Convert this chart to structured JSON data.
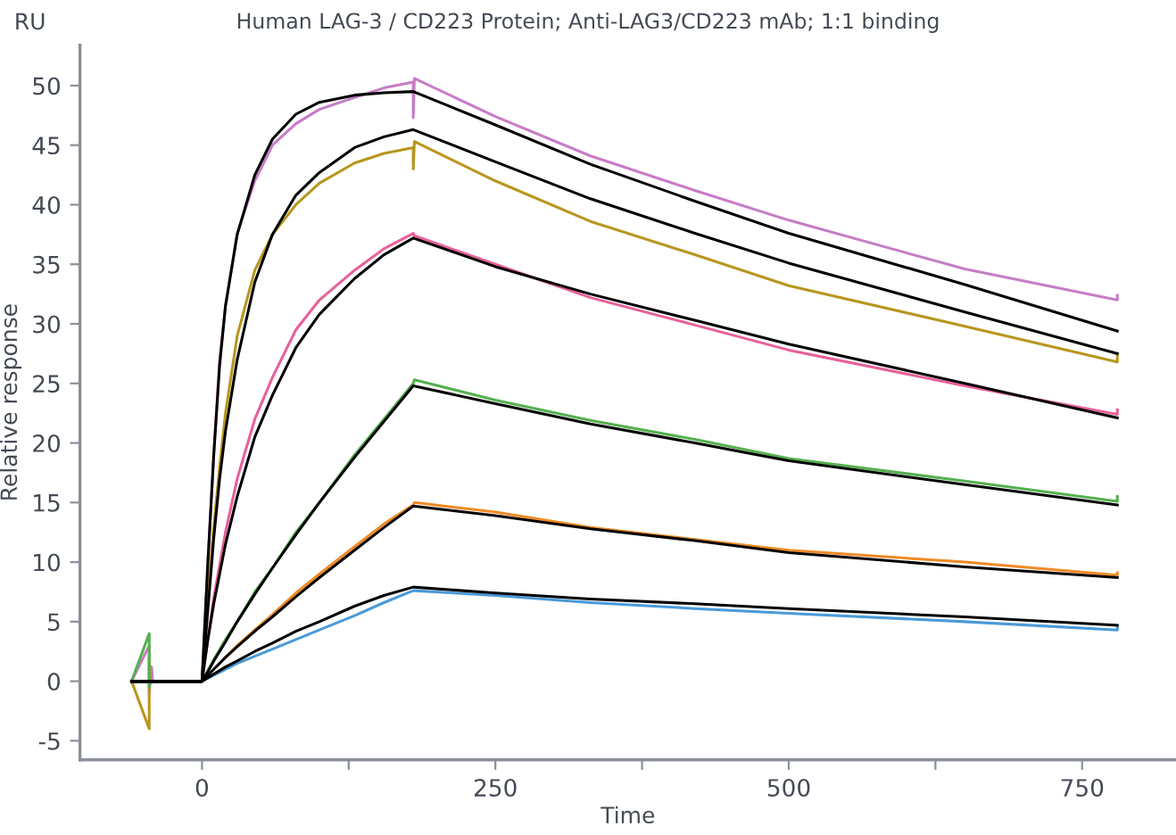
{
  "chart_data": {
    "type": "line",
    "title": "Human LAG-3 / CD223 Protein; Anti-LAG3/CD223 mAb; 1:1 binding",
    "xlabel": "Time",
    "ylabel": "Relative response",
    "annotations": [
      "RU"
    ],
    "xlim": [
      -104,
      830
    ],
    "ylim": [
      -6.6,
      53.4
    ],
    "xticks": [
      0,
      {
        "value": 125,
        "label": null
      },
      250,
      {
        "value": 375,
        "label": null
      },
      500,
      {
        "value": 625,
        "label": null
      },
      750
    ],
    "yticks": [
      -5,
      0,
      5,
      10,
      15,
      20,
      25,
      30,
      35,
      40,
      45,
      50
    ],
    "grid": false,
    "legend": false,
    "marker": "none",
    "line_style": "solid",
    "series": [
      {
        "color": "#c77cc7",
        "x": [
          -60,
          -45,
          -45,
          -43,
          -42,
          0,
          5,
          10,
          15,
          20,
          30,
          45,
          60,
          80,
          100,
          130,
          155,
          180,
          180,
          181,
          250,
          331,
          420,
          500,
          650,
          780,
          780
        ],
        "values": [
          0,
          3,
          -1,
          1.2,
          0,
          0,
          10,
          19,
          27,
          31.5,
          37.6,
          42,
          45,
          46.8,
          48,
          49,
          49.8,
          50.3,
          47.3,
          50.6,
          47.4,
          44.1,
          41.2,
          38.7,
          34.6,
          32,
          32.4
        ]
      },
      {
        "color": "#b8961e",
        "x": [
          -60,
          -45,
          -45,
          -44,
          0,
          5,
          10,
          15,
          20,
          30,
          45,
          60,
          80,
          100,
          130,
          155,
          180,
          180,
          181,
          250,
          331,
          420,
          500,
          650,
          780,
          780
        ],
        "values": [
          0,
          -4,
          2,
          0,
          0,
          7,
          13,
          18,
          22.5,
          29,
          34.5,
          37.5,
          40,
          41.8,
          43.5,
          44.3,
          44.8,
          43,
          45.3,
          42,
          38.6,
          35.8,
          33.2,
          29.8,
          26.8,
          27.3
        ]
      },
      {
        "color": "#e8609a",
        "x": [
          -60,
          0,
          10,
          20,
          30,
          45,
          60,
          80,
          100,
          130,
          155,
          180,
          181,
          250,
          331,
          420,
          500,
          650,
          780,
          780
        ],
        "values": [
          0,
          0,
          7,
          12.5,
          17,
          22,
          25.5,
          29.5,
          32,
          34.5,
          36.3,
          37.6,
          37.4,
          35,
          32.2,
          29.9,
          27.8,
          24.8,
          22.4,
          22.8
        ]
      },
      {
        "color": "#55b04f",
        "x": [
          -60,
          -45,
          -45,
          -44,
          0,
          10,
          20,
          30,
          45,
          60,
          80,
          100,
          130,
          155,
          180,
          181,
          250,
          331,
          420,
          500,
          650,
          780,
          780
        ],
        "values": [
          0,
          4,
          -0.5,
          0,
          0,
          1.8,
          3.5,
          5,
          7.5,
          9.5,
          12.5,
          15,
          19,
          22,
          25,
          25.3,
          23.6,
          21.9,
          20.3,
          18.7,
          16.8,
          15.1,
          15.5
        ]
      },
      {
        "color": "#f08a24",
        "x": [
          20,
          30,
          45,
          60,
          80,
          100,
          130,
          155,
          180,
          181,
          250,
          331,
          420,
          500,
          650,
          780,
          780
        ],
        "values": [
          2,
          3,
          4.3,
          5.6,
          7.4,
          9,
          11.3,
          13.2,
          14.8,
          15,
          14.2,
          12.9,
          11.9,
          11,
          10,
          8.9,
          9.1
        ]
      },
      {
        "color": "#4a9ad8",
        "x": [
          -60,
          0,
          10,
          20,
          30,
          45,
          60,
          80,
          100,
          130,
          155,
          180,
          181,
          250,
          331,
          420,
          500,
          650,
          780,
          780
        ],
        "values": [
          0,
          0,
          0.5,
          1,
          1.5,
          2.1,
          2.7,
          3.5,
          4.3,
          5.5,
          6.6,
          7.6,
          7.6,
          7.2,
          6.6,
          6.1,
          5.7,
          5,
          4.3,
          4.6
        ]
      },
      {
        "color": "#000000",
        "x": [
          -60,
          0,
          5,
          10,
          15,
          20,
          30,
          45,
          60,
          80,
          100,
          130,
          155,
          180,
          250,
          331,
          420,
          500,
          650,
          780
        ],
        "values": [
          0,
          0,
          10,
          19,
          26.5,
          31.5,
          37.5,
          42.5,
          45.5,
          47.6,
          48.6,
          49.2,
          49.4,
          49.5,
          46.7,
          43.4,
          40.3,
          37.6,
          33.3,
          29.4
        ]
      },
      {
        "color": "#000000",
        "x": [
          -60,
          0,
          5,
          10,
          15,
          20,
          30,
          45,
          60,
          80,
          100,
          130,
          155,
          180,
          250,
          331,
          420,
          500,
          650,
          780
        ],
        "values": [
          0,
          0,
          6,
          12,
          17,
          21,
          27,
          33.5,
          37.5,
          40.8,
          42.7,
          44.8,
          45.7,
          46.3,
          43.6,
          40.5,
          37.6,
          35.1,
          31,
          27.5
        ]
      },
      {
        "color": "#000000",
        "x": [
          -60,
          0,
          5,
          10,
          15,
          20,
          30,
          45,
          60,
          80,
          100,
          130,
          155,
          180,
          250,
          331,
          420,
          500,
          650,
          780
        ],
        "values": [
          0,
          0,
          3.5,
          6.5,
          9,
          11.5,
          15.5,
          20.5,
          24,
          28,
          30.8,
          33.8,
          35.8,
          37.2,
          34.8,
          32.5,
          30.3,
          28.3,
          25,
          22.1
        ]
      },
      {
        "color": "#000000",
        "x": [
          -60,
          0,
          5,
          10,
          15,
          20,
          30,
          45,
          60,
          80,
          100,
          130,
          155,
          180,
          250,
          331,
          420,
          500,
          650,
          780
        ],
        "values": [
          0,
          0,
          0.8,
          1.7,
          2.5,
          3.3,
          5,
          7.3,
          9.5,
          12.3,
          15,
          18.8,
          21.8,
          24.8,
          23.3,
          21.6,
          20,
          18.5,
          16.5,
          14.8
        ]
      },
      {
        "color": "#000000",
        "x": [
          -60,
          0,
          5,
          10,
          15,
          20,
          30,
          45,
          60,
          80,
          100,
          130,
          155,
          180,
          250,
          331,
          420,
          500,
          650,
          780
        ],
        "values": [
          0,
          0,
          0.5,
          1,
          1.5,
          2,
          2.9,
          4.2,
          5.4,
          7.1,
          8.7,
          11,
          12.9,
          14.7,
          13.9,
          12.8,
          11.8,
          10.8,
          9.6,
          8.7
        ]
      },
      {
        "color": "#000000",
        "x": [
          -60,
          0,
          5,
          10,
          15,
          20,
          30,
          45,
          60,
          80,
          100,
          130,
          155,
          180,
          250,
          331,
          420,
          500,
          650,
          780
        ],
        "values": [
          0,
          0,
          0.3,
          0.6,
          0.9,
          1.2,
          1.7,
          2.5,
          3.2,
          4.2,
          5,
          6.3,
          7.2,
          7.9,
          7.4,
          6.9,
          6.5,
          6.1,
          5.4,
          4.7
        ]
      }
    ]
  }
}
